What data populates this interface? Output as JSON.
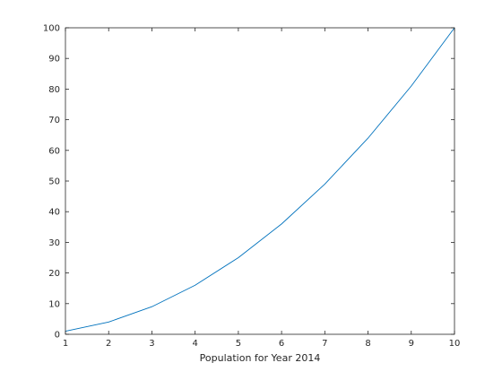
{
  "chart_data": {
    "type": "line",
    "title": "",
    "xlabel": "Population for Year 2014",
    "ylabel": "",
    "xlim": [
      1,
      10
    ],
    "ylim": [
      0,
      100
    ],
    "x_ticks": [
      1,
      2,
      3,
      4,
      5,
      6,
      7,
      8,
      9,
      10
    ],
    "y_ticks": [
      0,
      10,
      20,
      30,
      40,
      50,
      60,
      70,
      80,
      90,
      100
    ],
    "grid": false,
    "series": [
      {
        "name": "",
        "color": "#0072BD",
        "x": [
          1,
          2,
          3,
          4,
          5,
          6,
          7,
          8,
          9,
          10
        ],
        "y": [
          1,
          4,
          9,
          16,
          25,
          36,
          49,
          64,
          81,
          100
        ]
      }
    ]
  }
}
